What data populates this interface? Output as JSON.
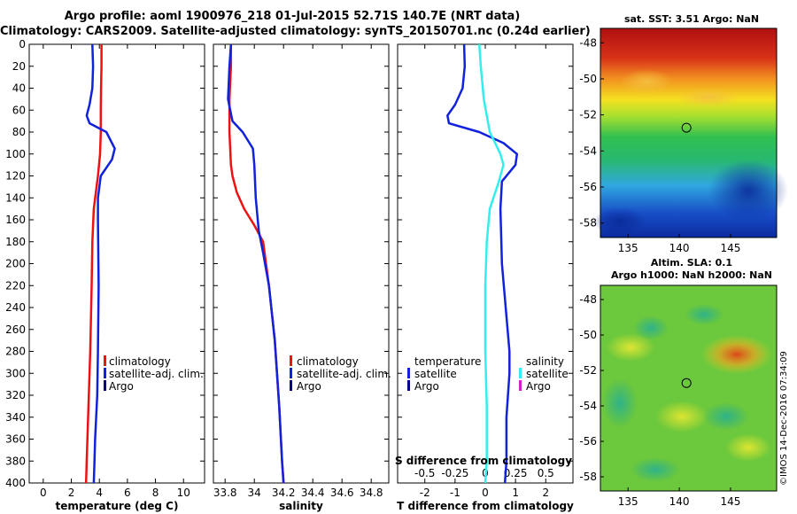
{
  "header": {
    "line1": "Argo profile: aoml 1900976_218 01-Jul-2015 52.71S 140.7E (NRT data)",
    "line2": "Climatology: CARS2009. Satellite-adjusted climatology: synTS_20150701.nc (0.24d earlier)"
  },
  "colors": {
    "climatology": "#ee1111",
    "satellite": "#1122dd",
    "argo": "#000088",
    "salinity_satellite": "#33eeee",
    "salinity_argo": "#cc22cc"
  },
  "chart_data": [
    {
      "type": "line",
      "id": "temperature",
      "xlabel": "temperature (deg C)",
      "ylabel": "",
      "xlim": [
        -1,
        11.5
      ],
      "ylim": [
        400,
        0
      ],
      "xticks": [
        "0",
        "2",
        "4",
        "6",
        "8",
        "10"
      ],
      "xtick_values": [
        0,
        2,
        4,
        6,
        8,
        10
      ],
      "yticks": [
        "0",
        "20",
        "40",
        "60",
        "80",
        "100",
        "120",
        "140",
        "160",
        "180",
        "200",
        "220",
        "240",
        "260",
        "280",
        "300",
        "320",
        "340",
        "360",
        "380",
        "400"
      ],
      "ytick_values": [
        0,
        20,
        40,
        60,
        80,
        100,
        120,
        140,
        160,
        180,
        200,
        220,
        240,
        260,
        280,
        300,
        320,
        340,
        360,
        380,
        400
      ],
      "legend": [
        "climatology",
        "satellite-adj. clim.",
        "Argo"
      ],
      "series": [
        {
          "name": "climatology",
          "color": "#ee1111",
          "x": [
            4.15,
            4.15,
            4.12,
            4.1,
            4.1,
            4.05,
            3.9,
            3.6,
            3.5,
            3.45,
            3.35,
            3.2,
            3.1,
            3.05
          ],
          "y": [
            0,
            20,
            40,
            60,
            80,
            100,
            120,
            150,
            180,
            220,
            280,
            340,
            380,
            400
          ]
        },
        {
          "name": "satellite-adj. clim.",
          "color": "#1122dd",
          "x": [
            3.5,
            3.55,
            3.5,
            3.3,
            3.1,
            3.3,
            4.5,
            5.1,
            4.9,
            4.1,
            3.9,
            3.9,
            3.95,
            3.9,
            3.85,
            3.7,
            3.65,
            3.6
          ],
          "y": [
            0,
            20,
            40,
            55,
            65,
            72,
            80,
            95,
            105,
            120,
            140,
            160,
            220,
            280,
            320,
            360,
            380,
            400
          ]
        }
      ]
    },
    {
      "type": "line",
      "id": "salinity",
      "xlabel": "salinity",
      "xlim": [
        33.72,
        34.92
      ],
      "ylim": [
        400,
        0
      ],
      "xticks": [
        "33.8",
        "34",
        "34.2",
        "34.4",
        "34.6",
        "34.8"
      ],
      "xtick_values": [
        33.8,
        34.0,
        34.2,
        34.4,
        34.6,
        34.8
      ],
      "legend": [
        "climatology",
        "satellite-adj. clim.",
        "Argo"
      ],
      "series": [
        {
          "name": "climatology",
          "color": "#ee1111",
          "x": [
            33.84,
            33.84,
            33.83,
            33.83,
            33.84,
            33.85,
            33.88,
            33.93,
            34.0,
            34.06,
            34.1,
            34.14,
            34.17,
            34.19,
            34.2
          ],
          "y": [
            0,
            20,
            50,
            80,
            110,
            120,
            135,
            150,
            165,
            180,
            220,
            270,
            330,
            380,
            400
          ]
        },
        {
          "name": "satellite-adj. clim.",
          "color": "#1122dd",
          "x": [
            33.84,
            33.83,
            33.82,
            33.85,
            33.92,
            33.99,
            34.0,
            34.01,
            34.03,
            34.06,
            34.1,
            34.14,
            34.17,
            34.19,
            34.2
          ],
          "y": [
            0,
            20,
            50,
            70,
            80,
            95,
            110,
            140,
            170,
            190,
            220,
            270,
            330,
            380,
            400
          ]
        }
      ]
    },
    {
      "type": "line",
      "id": "difference",
      "xlabel": "T difference from climatology",
      "top_axis_label": "S difference from climatology",
      "xlim": [
        -2.9,
        2.9
      ],
      "ylim": [
        400,
        0
      ],
      "xticks": [
        "-2",
        "-1",
        "0",
        "1",
        "2"
      ],
      "xtick_values": [
        -2,
        -1,
        0,
        1,
        2
      ],
      "sticks": [
        "-0.5",
        "-0.25",
        "0",
        "0.25",
        "0.5"
      ],
      "stick_values": [
        -2,
        -1,
        0,
        1,
        2
      ],
      "legend_left_title": "temperature",
      "legend_right_title": "salinity",
      "legend_left": [
        "satellite",
        "Argo"
      ],
      "legend_right": [
        "satellite",
        "Argo"
      ],
      "series": [
        {
          "name": "T satellite",
          "color": "#1122dd",
          "x": [
            -0.7,
            -0.68,
            -0.75,
            -1.0,
            -1.25,
            -1.2,
            -0.2,
            0.6,
            1.05,
            1.0,
            0.55,
            0.5,
            0.55,
            0.8,
            0.8,
            0.7,
            0.7,
            0.65
          ],
          "y": [
            0,
            20,
            40,
            55,
            65,
            72,
            80,
            90,
            100,
            110,
            125,
            150,
            200,
            280,
            300,
            340,
            380,
            400
          ]
        },
        {
          "name": "S satellite",
          "color": "#33eeee",
          "x": [
            -0.2,
            -0.15,
            -0.05,
            0.15,
            0.5,
            0.6,
            0.45,
            0.15,
            0.05,
            0.0,
            0.0,
            0.05,
            0.05,
            0.0
          ],
          "y": [
            0,
            20,
            50,
            80,
            100,
            110,
            125,
            150,
            180,
            220,
            280,
            330,
            380,
            400
          ]
        }
      ]
    }
  ],
  "maps": {
    "sst_title": "sat. SST: 3.51 Argo: NaN",
    "sla_title_1": "Altim. SLA: 0.1",
    "sla_title_2": "Argo h1000: NaN h2000: NaN",
    "lat_ticks": [
      "-48",
      "-50",
      "-52",
      "-54",
      "-56",
      "-58"
    ],
    "lat_values": [
      -48,
      -50,
      -52,
      -54,
      -56,
      -58
    ],
    "lon_ticks": [
      "135",
      "140",
      "145"
    ],
    "lon_values": [
      135,
      140,
      145
    ],
    "lon_range": [
      132.3,
      149.5
    ],
    "lat_range": [
      -47.2,
      -58.8
    ],
    "profile_lon": 140.7,
    "profile_lat": -52.71
  },
  "credit": "©IMOS 14-Dec-2016 07:34:09"
}
